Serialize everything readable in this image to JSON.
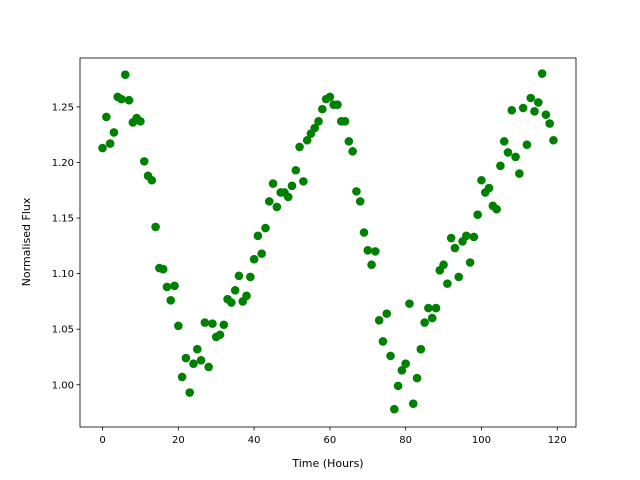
{
  "chart_data": {
    "type": "scatter",
    "xlabel": "Time (Hours)",
    "ylabel": "Normalised Flux",
    "color": "#008000",
    "x": [
      0,
      1,
      2,
      3,
      4,
      5,
      6,
      7,
      8,
      9,
      10,
      11,
      12,
      13,
      14,
      15,
      16,
      17,
      18,
      19,
      20,
      21,
      22,
      23,
      24,
      25,
      26,
      27,
      28,
      29,
      30,
      31,
      32,
      33,
      34,
      35,
      36,
      37,
      38,
      39,
      40,
      41,
      42,
      43,
      44,
      45,
      46,
      47,
      48,
      49,
      50,
      51,
      52,
      53,
      54,
      55,
      56,
      57,
      58,
      59,
      60,
      61,
      62,
      63,
      64,
      65,
      66,
      67,
      68,
      69,
      70,
      71,
      72,
      73,
      74,
      75,
      76,
      77,
      78,
      79,
      80,
      81,
      82,
      83,
      84,
      85,
      86,
      87,
      88,
      89,
      90,
      91,
      92,
      93,
      94,
      95,
      96,
      97,
      98,
      99,
      100,
      101,
      102,
      103,
      104,
      105,
      106,
      107,
      108,
      109,
      110,
      111,
      112,
      113,
      114,
      115,
      116,
      117,
      118,
      119
    ],
    "values": [
      1.213,
      1.241,
      1.217,
      1.227,
      1.259,
      1.257,
      1.279,
      1.256,
      1.236,
      1.24,
      1.237,
      1.201,
      1.188,
      1.184,
      1.142,
      1.105,
      1.104,
      1.088,
      1.076,
      1.089,
      1.053,
      1.007,
      1.024,
      0.993,
      1.019,
      1.032,
      1.022,
      1.056,
      1.016,
      1.055,
      1.043,
      1.045,
      1.054,
      1.077,
      1.074,
      1.085,
      1.098,
      1.075,
      1.08,
      1.097,
      1.113,
      1.134,
      1.118,
      1.141,
      1.165,
      1.181,
      1.16,
      1.173,
      1.173,
      1.169,
      1.179,
      1.193,
      1.214,
      1.183,
      1.22,
      1.226,
      1.231,
      1.237,
      1.248,
      1.257,
      1.259,
      1.252,
      1.252,
      1.237,
      1.237,
      1.219,
      1.21,
      1.174,
      1.165,
      1.137,
      1.121,
      1.108,
      1.12,
      1.058,
      1.039,
      1.064,
      1.026,
      0.978,
      0.999,
      1.013,
      1.019,
      1.073,
      0.983,
      1.006,
      1.032,
      1.056,
      1.069,
      1.06,
      1.069,
      1.103,
      1.108,
      1.091,
      1.132,
      1.123,
      1.097,
      1.129,
      1.134,
      1.11,
      1.133,
      1.153,
      1.184,
      1.173,
      1.177,
      1.161,
      1.158,
      1.197,
      1.219,
      1.209,
      1.247,
      1.205,
      1.19,
      1.249,
      1.216,
      1.258,
      1.246,
      1.254,
      1.28,
      1.243,
      1.235,
      1.22
    ],
    "xlim": [
      -5.95,
      124.95
    ],
    "ylim": [
      0.962,
      1.294
    ],
    "xticks": [
      0,
      20,
      40,
      60,
      80,
      100,
      120
    ],
    "yticks": [
      {
        "value": 1.0,
        "label": "1.00"
      },
      1.05,
      {
        "value": 1.1,
        "label": "1.10"
      },
      1.15,
      {
        "value": 1.2,
        "label": "1.20"
      },
      1.25
    ]
  }
}
